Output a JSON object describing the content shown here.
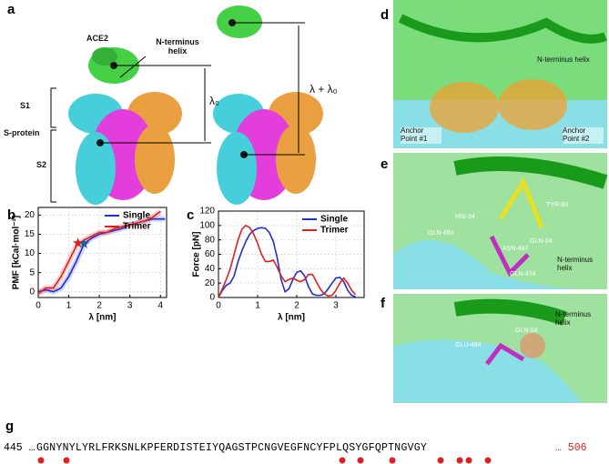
{
  "panel_labels": [
    "a",
    "b",
    "c",
    "d",
    "e",
    "f",
    "g"
  ],
  "panel_a": {
    "ace2": "ACE2",
    "helix": "N-terminus helix",
    "s1": "S1",
    "s2": "S2",
    "s_protein": "S-protein",
    "lambda0": "λ₀",
    "lambda_sum": "λ + λ₀"
  },
  "panel_d": {
    "helix": "N-terminus helix",
    "anchor1": "Anchor Point #1",
    "anchor2": "Anchor Point #2"
  },
  "panel_e": {
    "residues": [
      "TYR-83",
      "HIS-34",
      "GLN-493",
      "ASN-487",
      "GLN-24",
      "GLN-474"
    ],
    "helix": "N-terminus helix"
  },
  "panel_f": {
    "helix": "N-terminus helix",
    "residues": [
      "GLN-24",
      "GLU-484"
    ]
  },
  "panel_g": {
    "start": "445 …",
    "sequence": "GGNYNYLYRLFRKSNLKPFERDISTEIYQAGSTPCNGVEGFNCYFPLQSYGFQPTNGVGY",
    "end": "… 506"
  },
  "chart_data": [
    {
      "type": "line",
      "xlabel": "λ [nm]",
      "ylabel": "PMF [kCal·mol⁻¹]",
      "x": [
        0,
        0.25,
        0.5,
        0.75,
        1,
        1.25,
        1.5,
        1.75,
        2,
        2.25,
        2.5,
        2.75,
        3,
        3.25,
        3.5,
        3.75,
        4,
        4.15
      ],
      "series": [
        {
          "name": "Single",
          "color": "#1f2fd0",
          "values": [
            0,
            0.5,
            0,
            1,
            4,
            8,
            12.5,
            14,
            15,
            15.5,
            16,
            16.5,
            17.5,
            18,
            18.5,
            19,
            19,
            19
          ]
        },
        {
          "name": "Trimer",
          "color": "#e02020",
          "values": [
            -0.5,
            1,
            1,
            4,
            8,
            12,
            13.5,
            14.5,
            15.5,
            15.5,
            16.5,
            17,
            17.5,
            18,
            18.5,
            19.5,
            21,
            null
          ]
        }
      ],
      "markers": [
        {
          "x": 1.3,
          "y": 12.7,
          "color": "#e02020"
        },
        {
          "x": 1.5,
          "y": 12.5,
          "color": "#1f5fa0"
        }
      ],
      "xlim": [
        0,
        4.2
      ],
      "ylim": [
        -1.5,
        22
      ],
      "xticks": [
        0,
        1,
        2,
        3,
        4
      ],
      "yticks": [
        0,
        5,
        10,
        15,
        20
      ],
      "grid": true,
      "legend": "upper right"
    },
    {
      "type": "line",
      "xlabel": "λ [nm]",
      "ylabel": "Force [pN]",
      "x": [
        0,
        0.1,
        0.2,
        0.3,
        0.4,
        0.5,
        0.6,
        0.7,
        0.8,
        0.9,
        1,
        1.1,
        1.2,
        1.3,
        1.4,
        1.5,
        1.6,
        1.7,
        1.8,
        1.9,
        2,
        2.1,
        2.2,
        2.3,
        2.4,
        2.5,
        2.6,
        2.7,
        2.8,
        2.9,
        3,
        3.1,
        3.2,
        3.3,
        3.4,
        3.5
      ],
      "series": [
        {
          "name": "Single",
          "color": "#1f2fd0",
          "values": [
            0,
            10,
            17,
            20,
            30,
            50,
            65,
            78,
            88,
            93,
            96,
            97,
            96,
            90,
            78,
            55,
            25,
            8,
            12,
            25,
            35,
            37,
            30,
            15,
            5,
            3,
            3,
            5,
            12,
            20,
            27,
            28,
            22,
            10,
            3,
            1
          ]
        },
        {
          "name": "Trimer",
          "color": "#e02020",
          "values": [
            0,
            12,
            25,
            40,
            60,
            80,
            95,
            100,
            97,
            88,
            75,
            60,
            50,
            50,
            52,
            42,
            30,
            22,
            25,
            27,
            24,
            22,
            25,
            32,
            32,
            22,
            12,
            5,
            2,
            3,
            10,
            20,
            27,
            20,
            10,
            4
          ]
        }
      ],
      "xlim": [
        0,
        3.72
      ],
      "ylim": [
        0,
        120
      ],
      "xticks": [
        0,
        1,
        2,
        3
      ],
      "yticks": [
        0,
        20,
        40,
        60,
        80,
        100,
        120
      ],
      "grid": true,
      "legend": "upper right"
    }
  ]
}
